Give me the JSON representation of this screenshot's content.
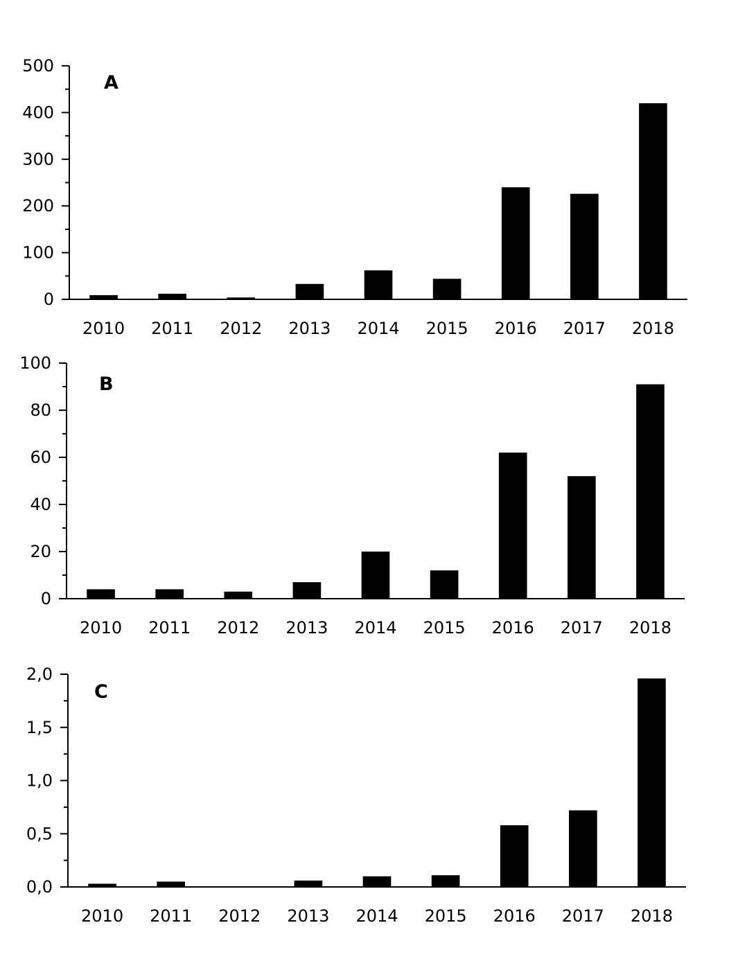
{
  "chart_data": [
    {
      "type": "bar",
      "panel_label": "A",
      "categories": [
        "2010",
        "2011",
        "2012",
        "2013",
        "2014",
        "2015",
        "2016",
        "2017",
        "2018"
      ],
      "values": [
        9,
        12,
        4,
        33,
        62,
        44,
        240,
        226,
        420
      ],
      "ylim": [
        0,
        500
      ],
      "yticks": [
        0,
        100,
        200,
        300,
        400,
        500
      ],
      "ytick_labels": [
        "0",
        "100",
        "200",
        "300",
        "400",
        "500"
      ],
      "minor_tick_step": 50,
      "grid": false,
      "bar_color": "#000000"
    },
    {
      "type": "bar",
      "panel_label": "B",
      "categories": [
        "2010",
        "2011",
        "2012",
        "2013",
        "2014",
        "2015",
        "2016",
        "2017",
        "2018"
      ],
      "values": [
        4,
        4,
        3,
        7,
        20,
        12,
        62,
        52,
        91
      ],
      "ylim": [
        0,
        100
      ],
      "yticks": [
        0,
        20,
        40,
        60,
        80,
        100
      ],
      "ytick_labels": [
        "0",
        "20",
        "40",
        "60",
        "80",
        "100"
      ],
      "minor_tick_step": 10,
      "grid": false,
      "bar_color": "#000000"
    },
    {
      "type": "bar",
      "panel_label": "C",
      "categories": [
        "2010",
        "2011",
        "2012",
        "2013",
        "2014",
        "2015",
        "2016",
        "2017",
        "2018"
      ],
      "values": [
        0.03,
        0.05,
        0.0,
        0.06,
        0.1,
        0.11,
        0.58,
        0.72,
        1.96
      ],
      "ylim": [
        0,
        2.0
      ],
      "yticks": [
        0,
        0.5,
        1.0,
        1.5,
        2.0
      ],
      "ytick_labels": [
        "0,0",
        "0,5",
        "1,0",
        "1,5",
        "2,0"
      ],
      "minor_tick_step": 0.25,
      "grid": false,
      "bar_color": "#000000"
    }
  ]
}
